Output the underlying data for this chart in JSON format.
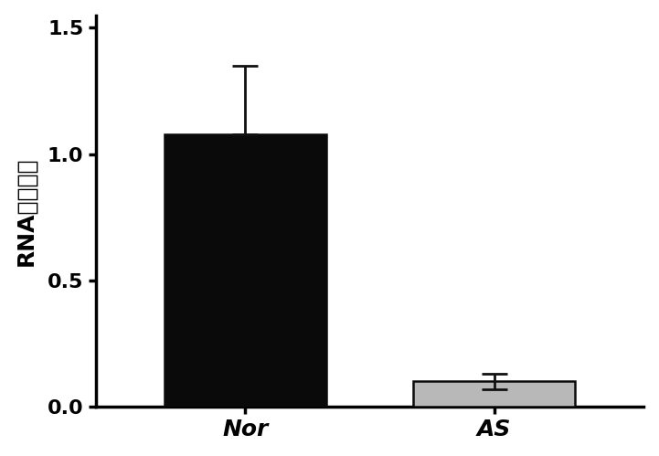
{
  "categories": [
    "Nor",
    "AS"
  ],
  "values": [
    1.08,
    0.1
  ],
  "errors_nor": [
    0.0,
    0.27
  ],
  "errors_as": [
    0.03,
    0.03
  ],
  "bar_colors": [
    "#0a0a0a",
    "#b8b8b8"
  ],
  "bar_edge_colors": [
    "#0a0a0a",
    "#0a0a0a"
  ],
  "ylabel": "RNA表达水平",
  "ylim": [
    0.0,
    1.55
  ],
  "yticks": [
    0.0,
    0.5,
    1.0,
    1.5
  ],
  "bar_width": 0.65,
  "error_capsize": 10,
  "error_linewidth": 2.0,
  "error_color": "#111111",
  "ylabel_fontsize": 18,
  "tick_fontsize": 16,
  "xtick_fontsize": 18,
  "background_color": "#ffffff",
  "spine_linewidth": 2.5
}
